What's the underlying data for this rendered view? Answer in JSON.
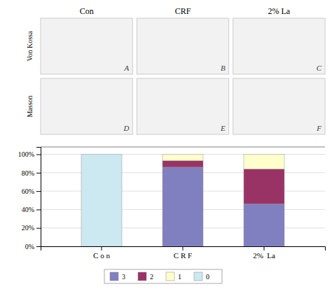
{
  "chart_data": {
    "type": "bar",
    "stacked": true,
    "annotations": [
      "Con",
      "CRF",
      "2% La",
      "Von Kossa",
      "Masson",
      "A",
      "B",
      "C",
      "D",
      "E",
      "F"
    ],
    "categories": [
      "C o n",
      "C R F",
      "2%  La"
    ],
    "series": [
      {
        "name": "3",
        "color": "#8080c0",
        "values": [
          0,
          86,
          46
        ]
      },
      {
        "name": "2",
        "color": "#993366",
        "values": [
          0,
          7,
          38
        ]
      },
      {
        "name": "1",
        "color": "#ffffcc",
        "values": [
          0,
          7,
          16
        ]
      },
      {
        "name": "0",
        "color": "#cce8f0",
        "values": [
          100,
          0,
          0
        ]
      }
    ],
    "ylim": [
      0,
      108
    ],
    "yticks": [
      {
        "value": 0,
        "label": "0%"
      },
      {
        "value": 20,
        "label": "20%"
      },
      {
        "value": 40,
        "label": "40%"
      },
      {
        "value": 60,
        "label": "60%"
      },
      {
        "value": 80,
        "label": "80%"
      },
      {
        "value": 100,
        "label": "100%"
      }
    ],
    "grid": true,
    "legend": "bottom"
  }
}
